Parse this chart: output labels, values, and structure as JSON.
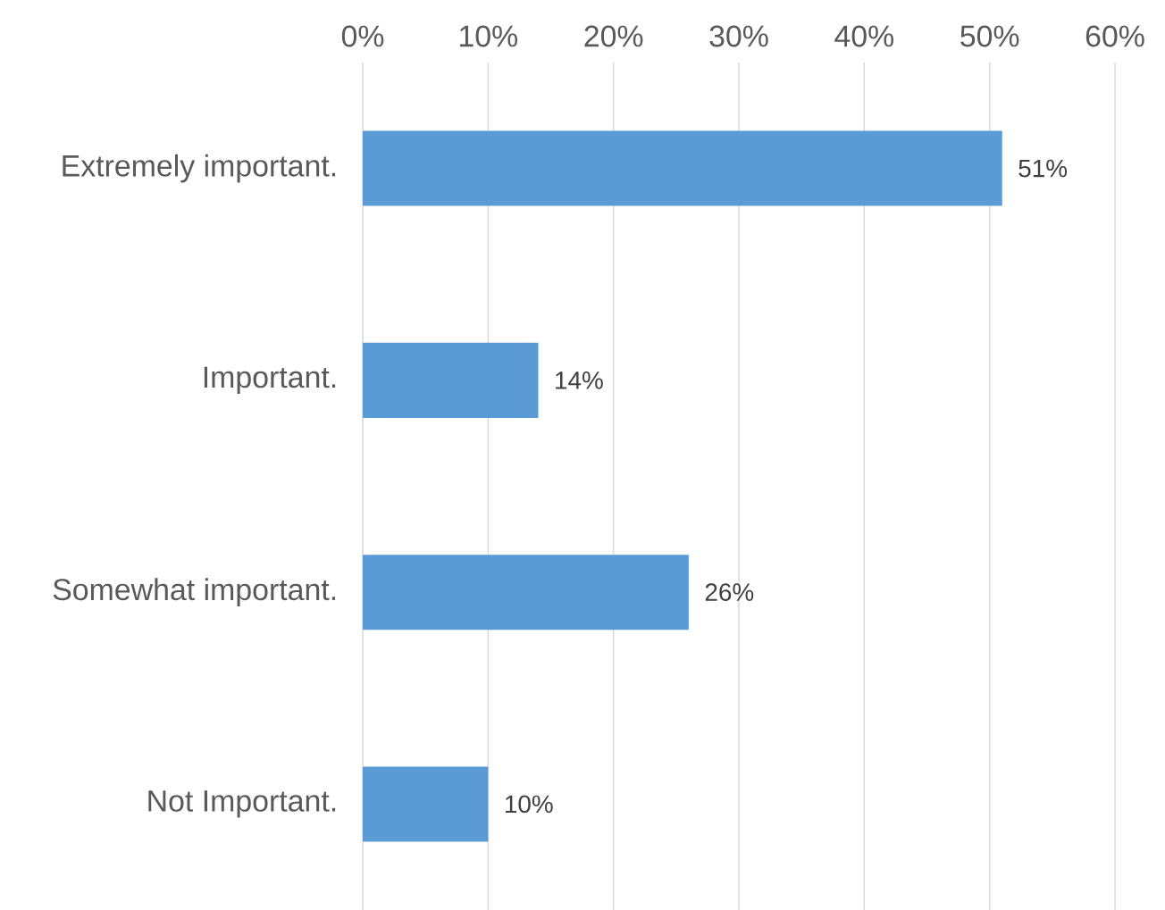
{
  "chart_data": {
    "type": "bar",
    "orientation": "horizontal",
    "categories": [
      "Extremely important.",
      "Important.",
      "Somewhat important.",
      "Not Important."
    ],
    "values": [
      51,
      14,
      26,
      10
    ],
    "value_labels": [
      "51%",
      "14%",
      "26%",
      "10%"
    ],
    "color": "#5b9bd5",
    "xlim": [
      0,
      60
    ],
    "xticks": [
      {
        "value": 0,
        "label": "0%"
      },
      {
        "value": 10,
        "label": "10%"
      },
      {
        "value": 20,
        "label": "20%"
      },
      {
        "value": 30,
        "label": "30%"
      },
      {
        "value": 40,
        "label": "40%"
      },
      {
        "value": 50,
        "label": "50%"
      },
      {
        "value": 60,
        "label": "60%"
      }
    ],
    "grid": "x"
  }
}
